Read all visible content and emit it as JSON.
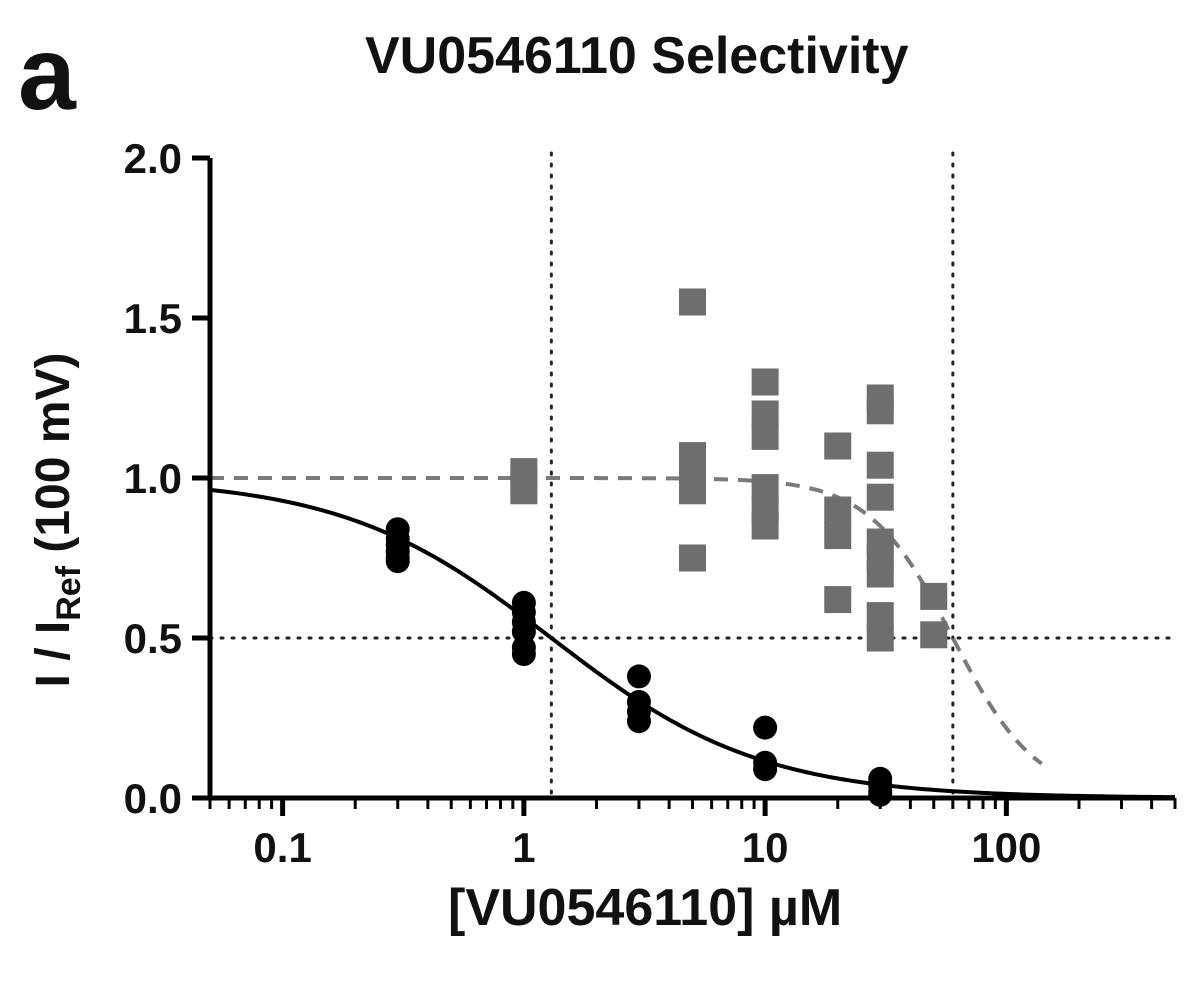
{
  "figure": {
    "panel_letter": "a"
  },
  "chart_data": {
    "type": "scatter",
    "title": "VU0546110 Selectivity",
    "xlabel": "[VU0546110] µM",
    "ylabel_main": "I / I",
    "ylabel_sub": "Ref",
    "ylabel_suffix": " (100 mV)",
    "xscale": "log",
    "xlim": [
      0.05,
      500
    ],
    "ylim": [
      0,
      2.0
    ],
    "xticks": [
      {
        "value": 0.1,
        "label": "0.1"
      },
      {
        "value": 1,
        "label": "1"
      },
      {
        "value": 10,
        "label": "10"
      },
      {
        "value": 100,
        "label": "100"
      }
    ],
    "yticks": [
      {
        "value": 0,
        "label": "0.0"
      },
      {
        "value": 0.5,
        "label": "0.5"
      },
      {
        "value": 1.0,
        "label": "1.0"
      },
      {
        "value": 1.5,
        "label": "1.5"
      },
      {
        "value": 2.0,
        "label": "2.0"
      }
    ],
    "reference_lines": [
      {
        "orientation": "horizontal",
        "value": 0.5,
        "style": "dotted"
      },
      {
        "orientation": "vertical",
        "value": 1.3,
        "style": "dotted"
      },
      {
        "orientation": "vertical",
        "value": 60,
        "style": "dotted"
      }
    ],
    "series": [
      {
        "name": "black-circles",
        "marker": "circle",
        "color": "#000000",
        "points": [
          [
            0.3,
            0.84
          ],
          [
            0.3,
            0.81
          ],
          [
            0.3,
            0.79
          ],
          [
            0.3,
            0.77
          ],
          [
            0.3,
            0.75
          ],
          [
            0.3,
            0.74
          ],
          [
            1,
            0.61
          ],
          [
            1,
            0.58
          ],
          [
            1,
            0.55
          ],
          [
            1,
            0.52
          ],
          [
            1,
            0.47
          ],
          [
            1,
            0.45
          ],
          [
            3,
            0.38
          ],
          [
            3,
            0.3
          ],
          [
            3,
            0.27
          ],
          [
            3,
            0.24
          ],
          [
            10,
            0.22
          ],
          [
            10,
            0.11
          ],
          [
            10,
            0.09
          ],
          [
            30,
            0.06
          ],
          [
            30,
            0.04
          ],
          [
            30,
            0.02
          ],
          [
            30,
            0.01
          ]
        ],
        "fit": {
          "style": "solid",
          "top": 1.0,
          "bottom": 0.0,
          "ic50": 1.3,
          "hill": 1.0,
          "x_range": [
            0.05,
            500
          ]
        }
      },
      {
        "name": "gray-squares",
        "marker": "square",
        "color": "#6e6e6e",
        "points": [
          [
            1,
            1.02
          ],
          [
            1,
            0.99
          ],
          [
            1,
            0.96
          ],
          [
            5,
            1.55
          ],
          [
            5,
            1.07
          ],
          [
            5,
            1.02
          ],
          [
            5,
            0.96
          ],
          [
            5,
            0.75
          ],
          [
            10,
            1.3
          ],
          [
            10,
            1.2
          ],
          [
            10,
            1.13
          ],
          [
            10,
            0.97
          ],
          [
            10,
            0.9
          ],
          [
            10,
            0.85
          ],
          [
            20,
            1.1
          ],
          [
            20,
            0.9
          ],
          [
            20,
            0.82
          ],
          [
            20,
            0.62
          ],
          [
            30,
            1.25
          ],
          [
            30,
            1.21
          ],
          [
            30,
            1.04
          ],
          [
            30,
            0.94
          ],
          [
            30,
            0.8
          ],
          [
            30,
            0.75
          ],
          [
            30,
            0.7
          ],
          [
            30,
            0.57
          ],
          [
            30,
            0.5
          ],
          [
            50,
            0.63
          ],
          [
            50,
            0.51
          ]
        ],
        "fit": {
          "style": "dashed",
          "top": 1.0,
          "bottom": 0.0,
          "ic50": 60,
          "hill": 2.5,
          "x_range": [
            0.05,
            140
          ]
        }
      }
    ]
  }
}
